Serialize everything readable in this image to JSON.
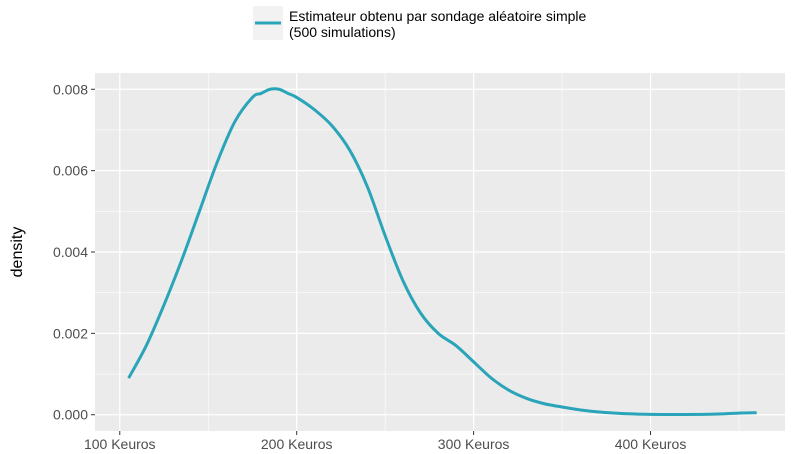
{
  "chart_data": {
    "type": "line",
    "title": "",
    "xlabel": "",
    "ylabel": "density",
    "xlim": [
      86,
      476
    ],
    "ylim": [
      -0.0004,
      0.0084
    ],
    "x_ticks": [
      {
        "value": 100,
        "label": "100 Keuros"
      },
      {
        "value": 200,
        "label": "200 Keuros"
      },
      {
        "value": 300,
        "label": "300 Keuros"
      },
      {
        "value": 400,
        "label": "400 Keuros"
      }
    ],
    "y_ticks": [
      {
        "value": 0,
        "label": "0.000"
      },
      {
        "value": 0.002,
        "label": "0.002"
      },
      {
        "value": 0.004,
        "label": "0.004"
      },
      {
        "value": 0.006,
        "label": "0.006"
      },
      {
        "value": 0.008,
        "label": "0.008"
      }
    ],
    "grid": true,
    "legend_position": "top",
    "series": [
      {
        "name": "Estimateur obtenu par sondage aléatoire simple\n(500 simulations)",
        "color": "#2aa4b8",
        "x": [
          105,
          115,
          125,
          135,
          145,
          155,
          165,
          175,
          180,
          185,
          190,
          195,
          200,
          210,
          220,
          230,
          240,
          250,
          260,
          270,
          280,
          290,
          300,
          310,
          320,
          330,
          340,
          350,
          360,
          370,
          380,
          390,
          400,
          410,
          420,
          430,
          440,
          450,
          460
        ],
        "y": [
          0.0009,
          0.0017,
          0.0027,
          0.0038,
          0.005,
          0.0062,
          0.0072,
          0.0078,
          0.0079,
          0.008,
          0.008,
          0.0079,
          0.0078,
          0.0075,
          0.0071,
          0.0065,
          0.0056,
          0.0044,
          0.0033,
          0.0025,
          0.002,
          0.0017,
          0.0013,
          0.0009,
          0.0006,
          0.0004,
          0.00027,
          0.00019,
          0.00012,
          7e-05,
          4e-05,
          2e-05,
          1e-05,
          5e-06,
          5e-06,
          1e-05,
          2e-05,
          4e-05,
          5e-05
        ]
      }
    ]
  }
}
